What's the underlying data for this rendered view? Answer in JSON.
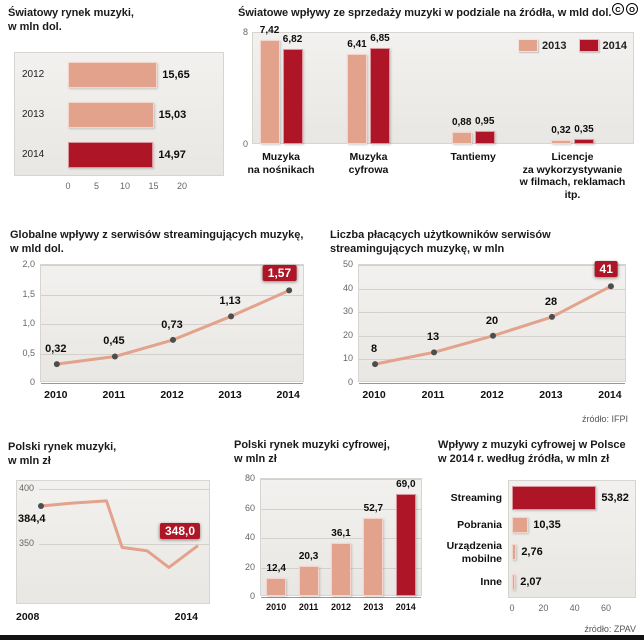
{
  "page": {
    "cc_icons": [
      "C",
      "O"
    ],
    "footer_bar_color": "#121212"
  },
  "colors": {
    "salmon": "#E2A28C",
    "dark_red": "#AE1527",
    "panel_bg": "#EFEDE9",
    "grid": "#D4D1CC",
    "text": "#111111",
    "tick_text": "#666666"
  },
  "chart_data": [
    {
      "id": "world_market",
      "type": "bar",
      "orientation": "horizontal",
      "title": "Światowy rynek muzyki,",
      "title2": "w mln dol.",
      "categories": [
        "2012",
        "2013",
        "2014"
      ],
      "values": [
        15.65,
        15.03,
        14.97
      ],
      "value_labels": [
        "15,65",
        "15,03",
        "14,97"
      ],
      "highlight_index": 2,
      "x_ticks": [
        "0",
        "5",
        "10",
        "15",
        "20"
      ],
      "xlim": [
        0,
        20
      ]
    },
    {
      "id": "world_revenue_sources",
      "type": "bar",
      "orientation": "vertical_grouped",
      "title": "Światowe wpływy ze sprzedaży muzyki w podziale na źródła, w mld dol.",
      "categories": [
        [
          "Muzyka",
          "na nośnikach"
        ],
        [
          "Muzyka",
          "cyfrowa"
        ],
        [
          "Tantiemy"
        ],
        [
          "Licencje",
          "za wykorzystywanie",
          "w filmach, reklamach",
          "itp."
        ]
      ],
      "series": [
        {
          "name": "2013",
          "color": "salmon",
          "values": [
            7.42,
            6.41,
            0.88,
            0.32
          ],
          "labels": [
            "7,42",
            "6,41",
            "0,88",
            "0,32"
          ]
        },
        {
          "name": "2014",
          "color": "dark_red",
          "values": [
            6.82,
            6.85,
            0.95,
            0.35
          ],
          "labels": [
            "6,82",
            "6,85",
            "0,95",
            "0,35"
          ]
        }
      ],
      "legend": [
        "2013",
        "2014"
      ],
      "y_ticks": [
        "8",
        "0"
      ],
      "ylim": [
        0,
        8
      ]
    },
    {
      "id": "global_streaming_revenue",
      "type": "line",
      "title": "Globalne wpływy z serwisów streamingujących muzykę,",
      "title2": "w mld dol.",
      "x": [
        "2010",
        "2011",
        "2012",
        "2013",
        "2014"
      ],
      "values": [
        0.32,
        0.45,
        0.73,
        1.13,
        1.57
      ],
      "value_labels": [
        "0,32",
        "0,45",
        "0,73",
        "1,13",
        "1,57"
      ],
      "highlight_index": 4,
      "y_ticks": [
        "2,0",
        "1,5",
        "1,0",
        "0,5",
        "0"
      ],
      "ylim": [
        0,
        2
      ]
    },
    {
      "id": "paying_streaming_users",
      "type": "line",
      "title": "Liczba płacących użytkowników serwisów",
      "title2": "streamingujących muzykę, w mln",
      "x": [
        "2010",
        "2011",
        "2012",
        "2013",
        "2014"
      ],
      "values": [
        8,
        13,
        20,
        28,
        41
      ],
      "value_labels": [
        "8",
        "13",
        "20",
        "28",
        "41"
      ],
      "highlight_index": 4,
      "y_ticks": [
        "50",
        "40",
        "30",
        "20",
        "10",
        "0"
      ],
      "ylim": [
        0,
        50
      ],
      "source": "źródło: IFPI"
    },
    {
      "id": "polish_music_market",
      "type": "line",
      "title": "Polski rynek muzyki,",
      "title2": "w mln zł",
      "x": [
        "2008",
        "2014"
      ],
      "first_label": "384,4",
      "last_label": "348,0",
      "values_estimated": [
        [
          0,
          384.4
        ],
        [
          0.2,
          387
        ],
        [
          0.42,
          389
        ],
        [
          0.52,
          347
        ],
        [
          0.68,
          344
        ],
        [
          0.82,
          329
        ],
        [
          1,
          348
        ]
      ],
      "y_ticks": [
        "400",
        "350"
      ],
      "ylim": [
        295,
        407
      ]
    },
    {
      "id": "polish_digital_market",
      "type": "bar",
      "orientation": "vertical",
      "title": "Polski rynek muzyki cyfrowej,",
      "title2": "w mln zł",
      "categories": [
        "2010",
        "2011",
        "2012",
        "2013",
        "2014"
      ],
      "values": [
        12.4,
        20.3,
        36.1,
        52.7,
        69.0
      ],
      "value_labels": [
        "12,4",
        "20,3",
        "36,1",
        "52,7",
        "69,0"
      ],
      "highlight_index": 4,
      "y_ticks": [
        "80",
        "60",
        "40",
        "20",
        "0"
      ],
      "ylim": [
        0,
        80
      ]
    },
    {
      "id": "digital_revenue_sources_poland",
      "type": "bar",
      "orientation": "horizontal",
      "title": "Wpływy z muzyki cyfrowej w Polsce",
      "title2": "w 2014 r. według źródła, w mln zł",
      "categories": [
        [
          "Streaming"
        ],
        [
          "Pobrania"
        ],
        [
          "Urządzenia",
          "mobilne"
        ],
        [
          "Inne"
        ]
      ],
      "values": [
        53.82,
        10.35,
        2.76,
        2.07
      ],
      "value_labels": [
        "53,82",
        "10,35",
        "2,76",
        "2,07"
      ],
      "highlight_index": 0,
      "x_ticks": [
        "0",
        "20",
        "40",
        "60"
      ],
      "xlim": [
        0,
        60
      ],
      "source": "źródło: ZPAV"
    }
  ]
}
